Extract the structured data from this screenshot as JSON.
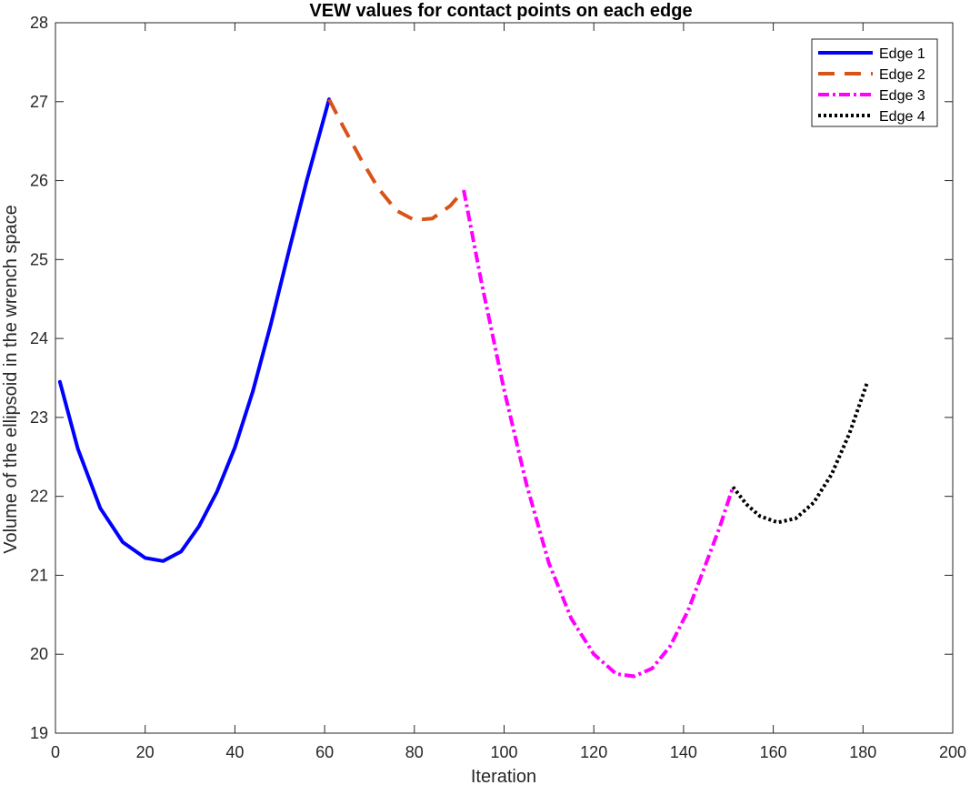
{
  "chart_data": {
    "type": "line",
    "title": "VEW values for contact points on each edge",
    "xlabel": "Iteration",
    "ylabel": "Volume of the ellipsoid in the wrench space",
    "xlim": [
      0,
      200
    ],
    "ylim": [
      19,
      28
    ],
    "xticks": [
      0,
      20,
      40,
      60,
      80,
      100,
      120,
      140,
      160,
      180,
      200
    ],
    "yticks": [
      19,
      20,
      21,
      22,
      23,
      24,
      25,
      26,
      27,
      28
    ],
    "grid": false,
    "legend_position": "top-right",
    "series": [
      {
        "name": "Edge 1",
        "color": "#0000ff",
        "style": "solid",
        "x": [
          1,
          5,
          10,
          15,
          20,
          24,
          28,
          32,
          36,
          40,
          44,
          48,
          52,
          56,
          61
        ],
        "y": [
          23.45,
          22.6,
          21.85,
          21.42,
          21.22,
          21.18,
          21.3,
          21.62,
          22.06,
          22.62,
          23.33,
          24.18,
          25.1,
          26.0,
          27.03
        ]
      },
      {
        "name": "Edge 2",
        "color": "#d95319",
        "style": "dashed",
        "x": [
          61,
          64,
          68,
          72,
          76,
          80,
          84,
          88,
          91
        ],
        "y": [
          27.03,
          26.7,
          26.28,
          25.9,
          25.62,
          25.5,
          25.52,
          25.68,
          25.88
        ]
      },
      {
        "name": "Edge 3",
        "color": "#ff00ff",
        "style": "dashdot",
        "x": [
          91,
          95,
          100,
          105,
          110,
          115,
          120,
          125,
          129,
          133,
          137,
          141,
          145,
          148,
          151
        ],
        "y": [
          25.88,
          24.7,
          23.35,
          22.15,
          21.15,
          20.45,
          20.0,
          19.75,
          19.72,
          19.82,
          20.1,
          20.55,
          21.15,
          21.6,
          22.12
        ]
      },
      {
        "name": "Edge 4",
        "color": "#000000",
        "style": "dotted",
        "x": [
          151,
          154,
          157,
          161,
          165,
          169,
          173,
          177,
          181
        ],
        "y": [
          22.12,
          21.9,
          21.75,
          21.67,
          21.72,
          21.92,
          22.28,
          22.8,
          23.45
        ]
      }
    ]
  }
}
